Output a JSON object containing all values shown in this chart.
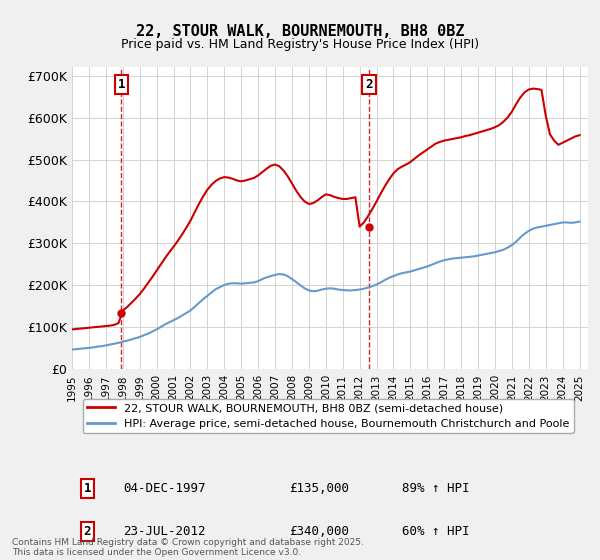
{
  "title_line1": "22, STOUR WALK, BOURNEMOUTH, BH8 0BZ",
  "title_line2": "Price paid vs. HM Land Registry's House Price Index (HPI)",
  "legend_line1": "22, STOUR WALK, BOURNEMOUTH, BH8 0BZ (semi-detached house)",
  "legend_line2": "HPI: Average price, semi-detached house, Bournemouth Christchurch and Poole",
  "footer": "Contains HM Land Registry data © Crown copyright and database right 2025.\nThis data is licensed under the Open Government Licence v3.0.",
  "sale1_date": "04-DEC-1997",
  "sale1_price": 135000,
  "sale1_hpi": "89% ↑ HPI",
  "sale2_date": "23-JUL-2012",
  "sale2_price": 340000,
  "sale2_hpi": "60% ↑ HPI",
  "property_color": "#cc0000",
  "hpi_color": "#6699cc",
  "sale1_x": 1997.92,
  "sale2_x": 2012.55,
  "ylim": [
    0,
    720000
  ],
  "xlim_start": 1995,
  "xlim_end": 2025.5,
  "hpi_years": [
    1995.0,
    1995.25,
    1995.5,
    1995.75,
    1996.0,
    1996.25,
    1996.5,
    1996.75,
    1997.0,
    1997.25,
    1997.5,
    1997.75,
    1998.0,
    1998.25,
    1998.5,
    1998.75,
    1999.0,
    1999.25,
    1999.5,
    1999.75,
    2000.0,
    2000.25,
    2000.5,
    2000.75,
    2001.0,
    2001.25,
    2001.5,
    2001.75,
    2002.0,
    2002.25,
    2002.5,
    2002.75,
    2003.0,
    2003.25,
    2003.5,
    2003.75,
    2004.0,
    2004.25,
    2004.5,
    2004.75,
    2005.0,
    2005.25,
    2005.5,
    2005.75,
    2006.0,
    2006.25,
    2006.5,
    2006.75,
    2007.0,
    2007.25,
    2007.5,
    2007.75,
    2008.0,
    2008.25,
    2008.5,
    2008.75,
    2009.0,
    2009.25,
    2009.5,
    2009.75,
    2010.0,
    2010.25,
    2010.5,
    2010.75,
    2011.0,
    2011.25,
    2011.5,
    2011.75,
    2012.0,
    2012.25,
    2012.5,
    2012.75,
    2013.0,
    2013.25,
    2013.5,
    2013.75,
    2014.0,
    2014.25,
    2014.5,
    2014.75,
    2015.0,
    2015.25,
    2015.5,
    2015.75,
    2016.0,
    2016.25,
    2016.5,
    2016.75,
    2017.0,
    2017.25,
    2017.5,
    2017.75,
    2018.0,
    2018.25,
    2018.5,
    2018.75,
    2019.0,
    2019.25,
    2019.5,
    2019.75,
    2020.0,
    2020.25,
    2020.5,
    2020.75,
    2021.0,
    2021.25,
    2021.5,
    2021.75,
    2022.0,
    2022.25,
    2022.5,
    2022.75,
    2023.0,
    2023.25,
    2023.5,
    2023.75,
    2024.0,
    2024.25,
    2024.5,
    2024.75,
    2025.0
  ],
  "hpi_values": [
    47000,
    48000,
    49000,
    50000,
    51000,
    52000,
    54000,
    55000,
    57000,
    59000,
    61000,
    63000,
    66000,
    68000,
    71000,
    74000,
    77000,
    81000,
    85000,
    90000,
    95000,
    101000,
    107000,
    112000,
    117000,
    122000,
    128000,
    134000,
    140000,
    149000,
    158000,
    167000,
    175000,
    183000,
    191000,
    196000,
    201000,
    204000,
    205000,
    205000,
    204000,
    205000,
    206000,
    207000,
    210000,
    215000,
    219000,
    222000,
    225000,
    227000,
    226000,
    222000,
    215000,
    208000,
    200000,
    193000,
    188000,
    186000,
    187000,
    190000,
    192000,
    193000,
    192000,
    190000,
    189000,
    188000,
    188000,
    189000,
    190000,
    192000,
    195000,
    198000,
    202000,
    207000,
    213000,
    218000,
    222000,
    226000,
    229000,
    231000,
    233000,
    236000,
    239000,
    242000,
    245000,
    249000,
    253000,
    257000,
    260000,
    262000,
    264000,
    265000,
    266000,
    267000,
    268000,
    269000,
    271000,
    273000,
    275000,
    277000,
    279000,
    282000,
    285000,
    290000,
    296000,
    304000,
    314000,
    323000,
    330000,
    335000,
    338000,
    340000,
    342000,
    344000,
    346000,
    348000,
    350000,
    350000,
    349000,
    350000,
    352000
  ],
  "property_years": [
    1995.0,
    1995.25,
    1995.5,
    1995.75,
    1996.0,
    1996.25,
    1996.5,
    1996.75,
    1997.0,
    1997.25,
    1997.5,
    1997.75,
    1998.0,
    1998.25,
    1998.5,
    1998.75,
    1999.0,
    1999.25,
    1999.5,
    1999.75,
    2000.0,
    2000.25,
    2000.5,
    2000.75,
    2001.0,
    2001.25,
    2001.5,
    2001.75,
    2002.0,
    2002.25,
    2002.5,
    2002.75,
    2003.0,
    2003.25,
    2003.5,
    2003.75,
    2004.0,
    2004.25,
    2004.5,
    2004.75,
    2005.0,
    2005.25,
    2005.5,
    2005.75,
    2006.0,
    2006.25,
    2006.5,
    2006.75,
    2007.0,
    2007.25,
    2007.5,
    2007.75,
    2008.0,
    2008.25,
    2008.5,
    2008.75,
    2009.0,
    2009.25,
    2009.5,
    2009.75,
    2010.0,
    2010.25,
    2010.5,
    2010.75,
    2011.0,
    2011.25,
    2011.5,
    2011.75,
    2012.0,
    2012.25,
    2012.5,
    2012.75,
    2013.0,
    2013.25,
    2013.5,
    2013.75,
    2014.0,
    2014.25,
    2014.5,
    2014.75,
    2015.0,
    2015.25,
    2015.5,
    2015.75,
    2016.0,
    2016.25,
    2016.5,
    2016.75,
    2017.0,
    2017.25,
    2017.5,
    2017.75,
    2018.0,
    2018.25,
    2018.5,
    2018.75,
    2019.0,
    2019.25,
    2019.5,
    2019.75,
    2020.0,
    2020.25,
    2020.5,
    2020.75,
    2021.0,
    2021.25,
    2021.5,
    2021.75,
    2022.0,
    2022.25,
    2022.5,
    2022.75,
    2023.0,
    2023.25,
    2023.5,
    2023.75,
    2024.0,
    2024.25,
    2024.5,
    2024.75,
    2025.0
  ],
  "property_values": [
    95000,
    96000,
    97000,
    98000,
    99000,
    100000,
    101000,
    102000,
    103000,
    104000,
    106000,
    110000,
    140000,
    148000,
    158000,
    168000,
    179000,
    192000,
    206000,
    220000,
    235000,
    250000,
    265000,
    279000,
    292000,
    306000,
    321000,
    337000,
    354000,
    374000,
    394000,
    412000,
    428000,
    440000,
    449000,
    455000,
    458000,
    457000,
    454000,
    450000,
    448000,
    450000,
    453000,
    456000,
    462000,
    470000,
    478000,
    485000,
    488000,
    484000,
    474000,
    460000,
    443000,
    426000,
    411000,
    400000,
    394000,
    396000,
    402000,
    410000,
    417000,
    415000,
    411000,
    408000,
    406000,
    406000,
    408000,
    410000,
    340000,
    350000,
    365000,
    382000,
    400000,
    419000,
    437000,
    453000,
    467000,
    477000,
    483000,
    488000,
    494000,
    502000,
    510000,
    517000,
    524000,
    531000,
    538000,
    542000,
    545000,
    547000,
    549000,
    551000,
    553000,
    556000,
    558000,
    561000,
    564000,
    567000,
    570000,
    573000,
    577000,
    582000,
    590000,
    600000,
    614000,
    632000,
    648000,
    660000,
    667000,
    669000,
    668000,
    666000,
    605000,
    560000,
    545000,
    535000,
    540000,
    545000,
    550000,
    555000,
    558000
  ],
  "xticks": [
    1995,
    1996,
    1997,
    1998,
    1999,
    2000,
    2001,
    2002,
    2003,
    2004,
    2005,
    2006,
    2007,
    2008,
    2009,
    2010,
    2011,
    2012,
    2013,
    2014,
    2015,
    2016,
    2017,
    2018,
    2019,
    2020,
    2021,
    2022,
    2023,
    2024,
    2025
  ],
  "yticks": [
    0,
    100000,
    200000,
    300000,
    400000,
    500000,
    600000,
    700000
  ],
  "ytick_labels": [
    "£0",
    "£100K",
    "£200K",
    "£300K",
    "£400K",
    "£500K",
    "£600K",
    "£700K"
  ],
  "bg_color": "#f0f0f0",
  "plot_bg_color": "#ffffff"
}
